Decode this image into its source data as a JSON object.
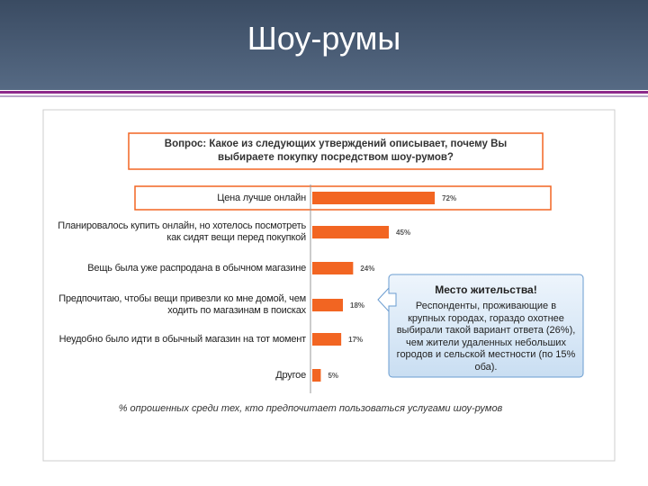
{
  "header": {
    "title": "Шоу-румы"
  },
  "chart_data": {
    "type": "bar",
    "orientation": "horizontal",
    "title": "Вопрос: Какое из следующих утверждений описывает, почему Вы выбираете покупку посредством шоу-румов?",
    "categories": [
      "Цена лучше онлайн",
      "Планировалось купить онлайн, но хотелось посмотреть как сидят вещи перед покупкой",
      "Вещь была уже распродана в обычном магазине",
      "Предпочитаю, чтобы вещи привезли ко мне домой, чем ходить по магазинам в поисках",
      "Неудобно было идти в обычный магазин на тот момент",
      "Другое"
    ],
    "values": [
      72,
      45,
      24,
      18,
      17,
      5
    ],
    "value_labels": [
      "72%",
      "45%",
      "24%",
      "18%",
      "17%",
      "5%"
    ],
    "color": "#f26522",
    "note": "% опрошенных среди тех, кто предпочитает пользоваться услугами шоу-румов"
  },
  "callout": {
    "title": "Место жительства!",
    "text": "Респонденты, проживающие в крупных городах, гораздо охотнее выбирали такой вариант ответа (26%), чем жители удаленных небольших городов и сельской местности (по 15% оба)."
  }
}
